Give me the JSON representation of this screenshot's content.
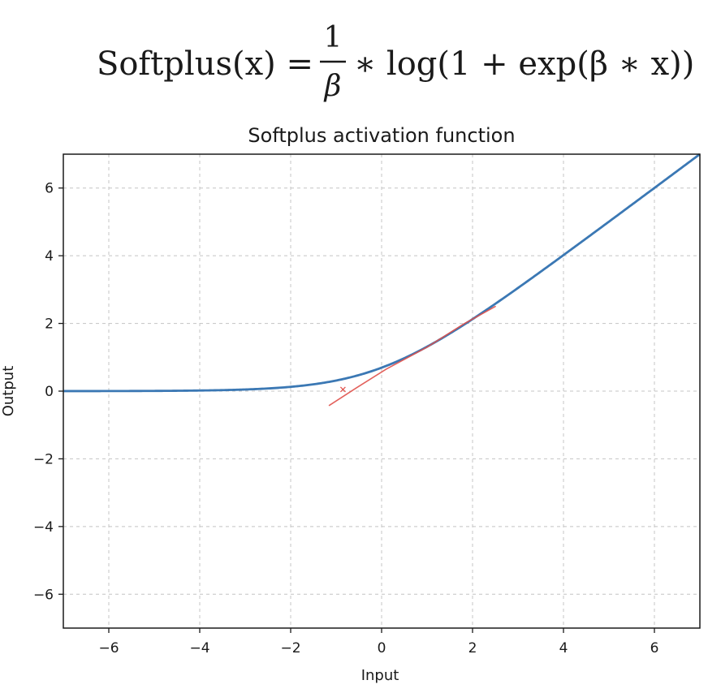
{
  "formula": {
    "lhs": "Softplus(x) =",
    "numerator": "1",
    "denominator": "β",
    "rhs": "∗ log(1 + exp(β ∗ x))"
  },
  "chart_data": {
    "type": "line",
    "title": "Softplus activation function",
    "xlabel": "Input",
    "ylabel": "Output",
    "xlim": [
      -7,
      7
    ],
    "ylim": [
      -7,
      7
    ],
    "xticks": [
      -6,
      -4,
      -2,
      0,
      2,
      4,
      6
    ],
    "yticks": [
      -6,
      -4,
      -2,
      0,
      2,
      4,
      6
    ],
    "tick_labels": {
      "x": [
        "−6",
        "−4",
        "−2",
        "0",
        "2",
        "4",
        "6"
      ],
      "y": [
        "−6",
        "−4",
        "−2",
        "0",
        "2",
        "4",
        "6"
      ]
    },
    "grid": true,
    "series": [
      {
        "function": "softplus",
        "beta": 1,
        "color": "#3b78b4",
        "x_range": [
          -7,
          7
        ]
      },
      {
        "function": "annotation-stroke",
        "color": "#e0504a",
        "x": [
          -1.15,
          -0.55,
          0.1,
          1.0,
          1.8,
          2.5
        ],
        "y": [
          -0.42,
          0.1,
          0.65,
          1.3,
          1.98,
          2.5
        ]
      }
    ],
    "colors": {
      "axes": "#1a1a1a",
      "grid": "#c4c4c4",
      "background": "#ffffff"
    }
  }
}
